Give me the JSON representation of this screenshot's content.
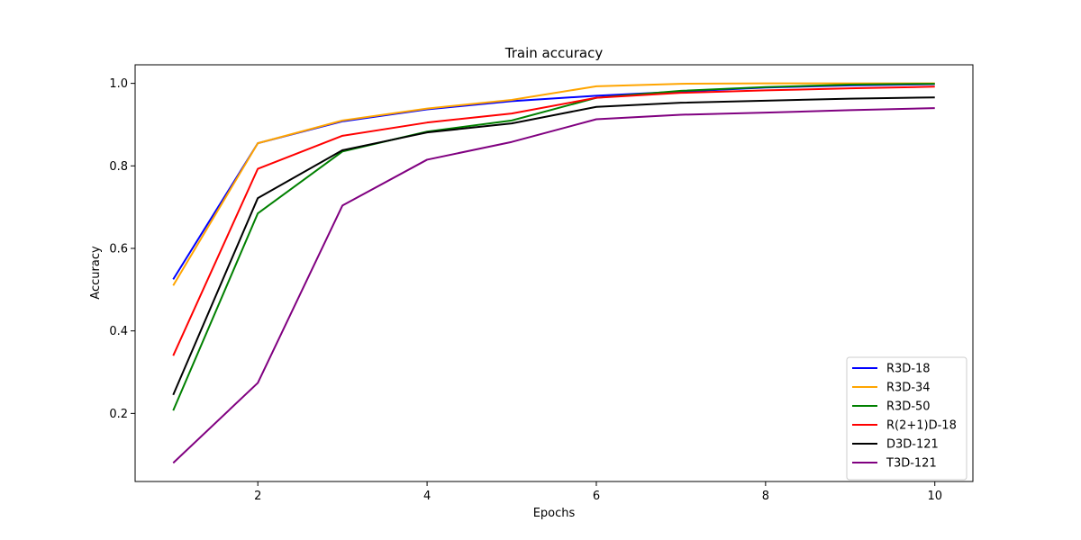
{
  "chart_data": {
    "type": "line",
    "title": "Train accuracy",
    "xlabel": "Epochs",
    "ylabel": "Accuracy",
    "x": [
      1,
      2,
      3,
      4,
      5,
      6,
      7,
      8,
      9,
      10
    ],
    "xlim": [
      0.55,
      10.45
    ],
    "ylim": [
      0.035,
      1.045
    ],
    "xticks": [
      2,
      4,
      6,
      8,
      10
    ],
    "yticks": [
      0.2,
      0.4,
      0.6,
      0.8,
      1.0
    ],
    "xtick_labels": [
      "2",
      "4",
      "6",
      "8",
      "10"
    ],
    "ytick_labels": [
      "0.2",
      "0.4",
      "0.6",
      "0.8",
      "1.0"
    ],
    "grid": false,
    "legend_position": "lower-right",
    "series": [
      {
        "name": "R3D-18",
        "color": "#0000ff",
        "values": [
          0.525,
          0.855,
          0.908,
          0.937,
          0.957,
          0.97,
          0.98,
          0.99,
          0.995,
          0.998
        ]
      },
      {
        "name": "R3D-34",
        "color": "#ffa500",
        "values": [
          0.51,
          0.855,
          0.91,
          0.939,
          0.96,
          0.993,
          0.999,
          1.0,
          1.0,
          1.0
        ]
      },
      {
        "name": "R3D-50",
        "color": "#008000",
        "values": [
          0.207,
          0.685,
          0.835,
          0.883,
          0.91,
          0.965,
          0.982,
          0.991,
          0.997,
          0.999
        ]
      },
      {
        "name": "R(2+1)D-18",
        "color": "#ff0000",
        "values": [
          0.34,
          0.793,
          0.873,
          0.905,
          0.927,
          0.965,
          0.977,
          0.983,
          0.988,
          0.992
        ]
      },
      {
        "name": "D3D-121",
        "color": "#000000",
        "values": [
          0.245,
          0.722,
          0.838,
          0.881,
          0.903,
          0.943,
          0.953,
          0.958,
          0.963,
          0.966
        ]
      },
      {
        "name": "T3D-121",
        "color": "#800080",
        "values": [
          0.08,
          0.274,
          0.704,
          0.815,
          0.858,
          0.913,
          0.924,
          0.929,
          0.935,
          0.94
        ]
      }
    ]
  }
}
